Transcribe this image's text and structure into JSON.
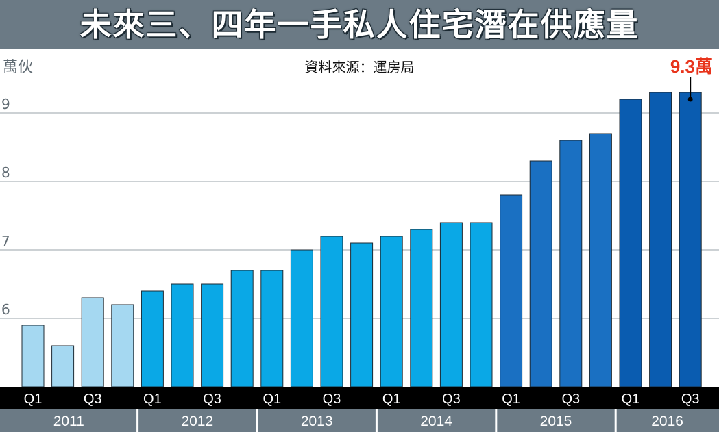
{
  "title": "未來三、四年一手私人住宅潛在供應量",
  "unit": "萬伙",
  "source": "資料來源：運房局",
  "chart_data": {
    "type": "bar",
    "title": "未來三、四年一手私人住宅潛在供應量",
    "ylabel": "萬伙",
    "ylim": [
      5,
      9.4
    ],
    "yticks": [
      6,
      7,
      8,
      9
    ],
    "grid": true,
    "quarter_tick_labels": [
      "Q1",
      "Q3",
      "Q1",
      "Q3",
      "Q1",
      "Q3",
      "Q1",
      "Q3",
      "Q1",
      "Q3",
      "Q1",
      "Q3"
    ],
    "years": [
      "2011",
      "2012",
      "2013",
      "2014",
      "2015",
      "2016"
    ],
    "categories": [
      "2011 Q1",
      "2011 Q2",
      "2011 Q3",
      "2011 Q4",
      "2012 Q1",
      "2012 Q2",
      "2012 Q3",
      "2012 Q4",
      "2013 Q1",
      "2013 Q2",
      "2013 Q3",
      "2013 Q4",
      "2014 Q1",
      "2014 Q2",
      "2014 Q3",
      "2014 Q4",
      "2015 Q1",
      "2015 Q2",
      "2015 Q3",
      "2015 Q4",
      "2016 Q1",
      "2016 Q2",
      "2016 Q3"
    ],
    "values": [
      5.9,
      5.6,
      6.3,
      6.2,
      6.4,
      6.5,
      6.5,
      6.7,
      6.7,
      7.0,
      7.2,
      7.1,
      7.2,
      7.3,
      7.4,
      7.4,
      7.8,
      8.3,
      8.6,
      8.7,
      9.2,
      9.3,
      9.3
    ],
    "annotation": "9.3萬",
    "year_colors": {
      "2011": "#a5d8f1",
      "2012": "#0aa8e6",
      "2013": "#0aa8e6",
      "2014": "#0aa8e6",
      "2015": "#1a70c2",
      "2016": "#0a5cb0"
    },
    "colors": {
      "title_bar": "#6b7a85",
      "axis_bar": "#000000",
      "year_bar": "#6b7a85",
      "grid": "#9aa3aa",
      "callout": "#e8341c"
    }
  }
}
